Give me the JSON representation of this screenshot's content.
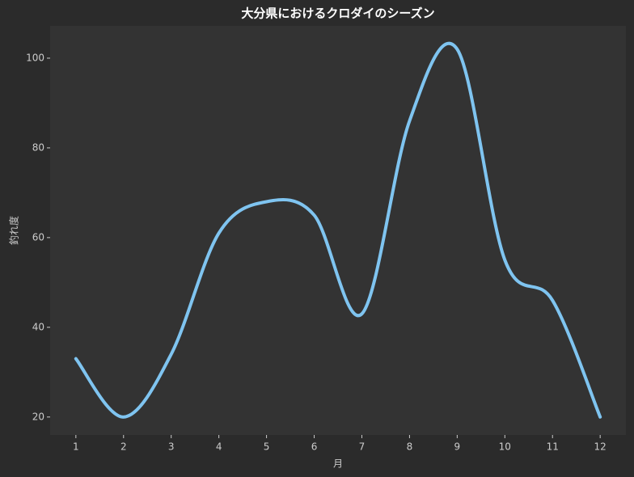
{
  "chart_data": {
    "type": "line",
    "title": "大分県におけるクロダイのシーズン",
    "xlabel": "月",
    "ylabel": "釣れ度",
    "x": [
      1,
      2,
      3,
      4,
      5,
      6,
      7,
      8,
      9,
      10,
      11,
      12
    ],
    "series": [
      {
        "color": "#7fc4f0",
        "values": [
          33,
          20,
          34,
          61,
          68,
          65,
          43,
          86,
          102,
          55,
          46,
          20
        ]
      }
    ],
    "xlim": [
      0.46,
      12.54
    ],
    "ylim": [
      16,
      107.2
    ],
    "xticks": [
      1,
      2,
      3,
      4,
      5,
      6,
      7,
      8,
      9,
      10,
      11,
      12
    ],
    "yticks": [
      20,
      40,
      60,
      80,
      100
    ],
    "smooth": true
  }
}
